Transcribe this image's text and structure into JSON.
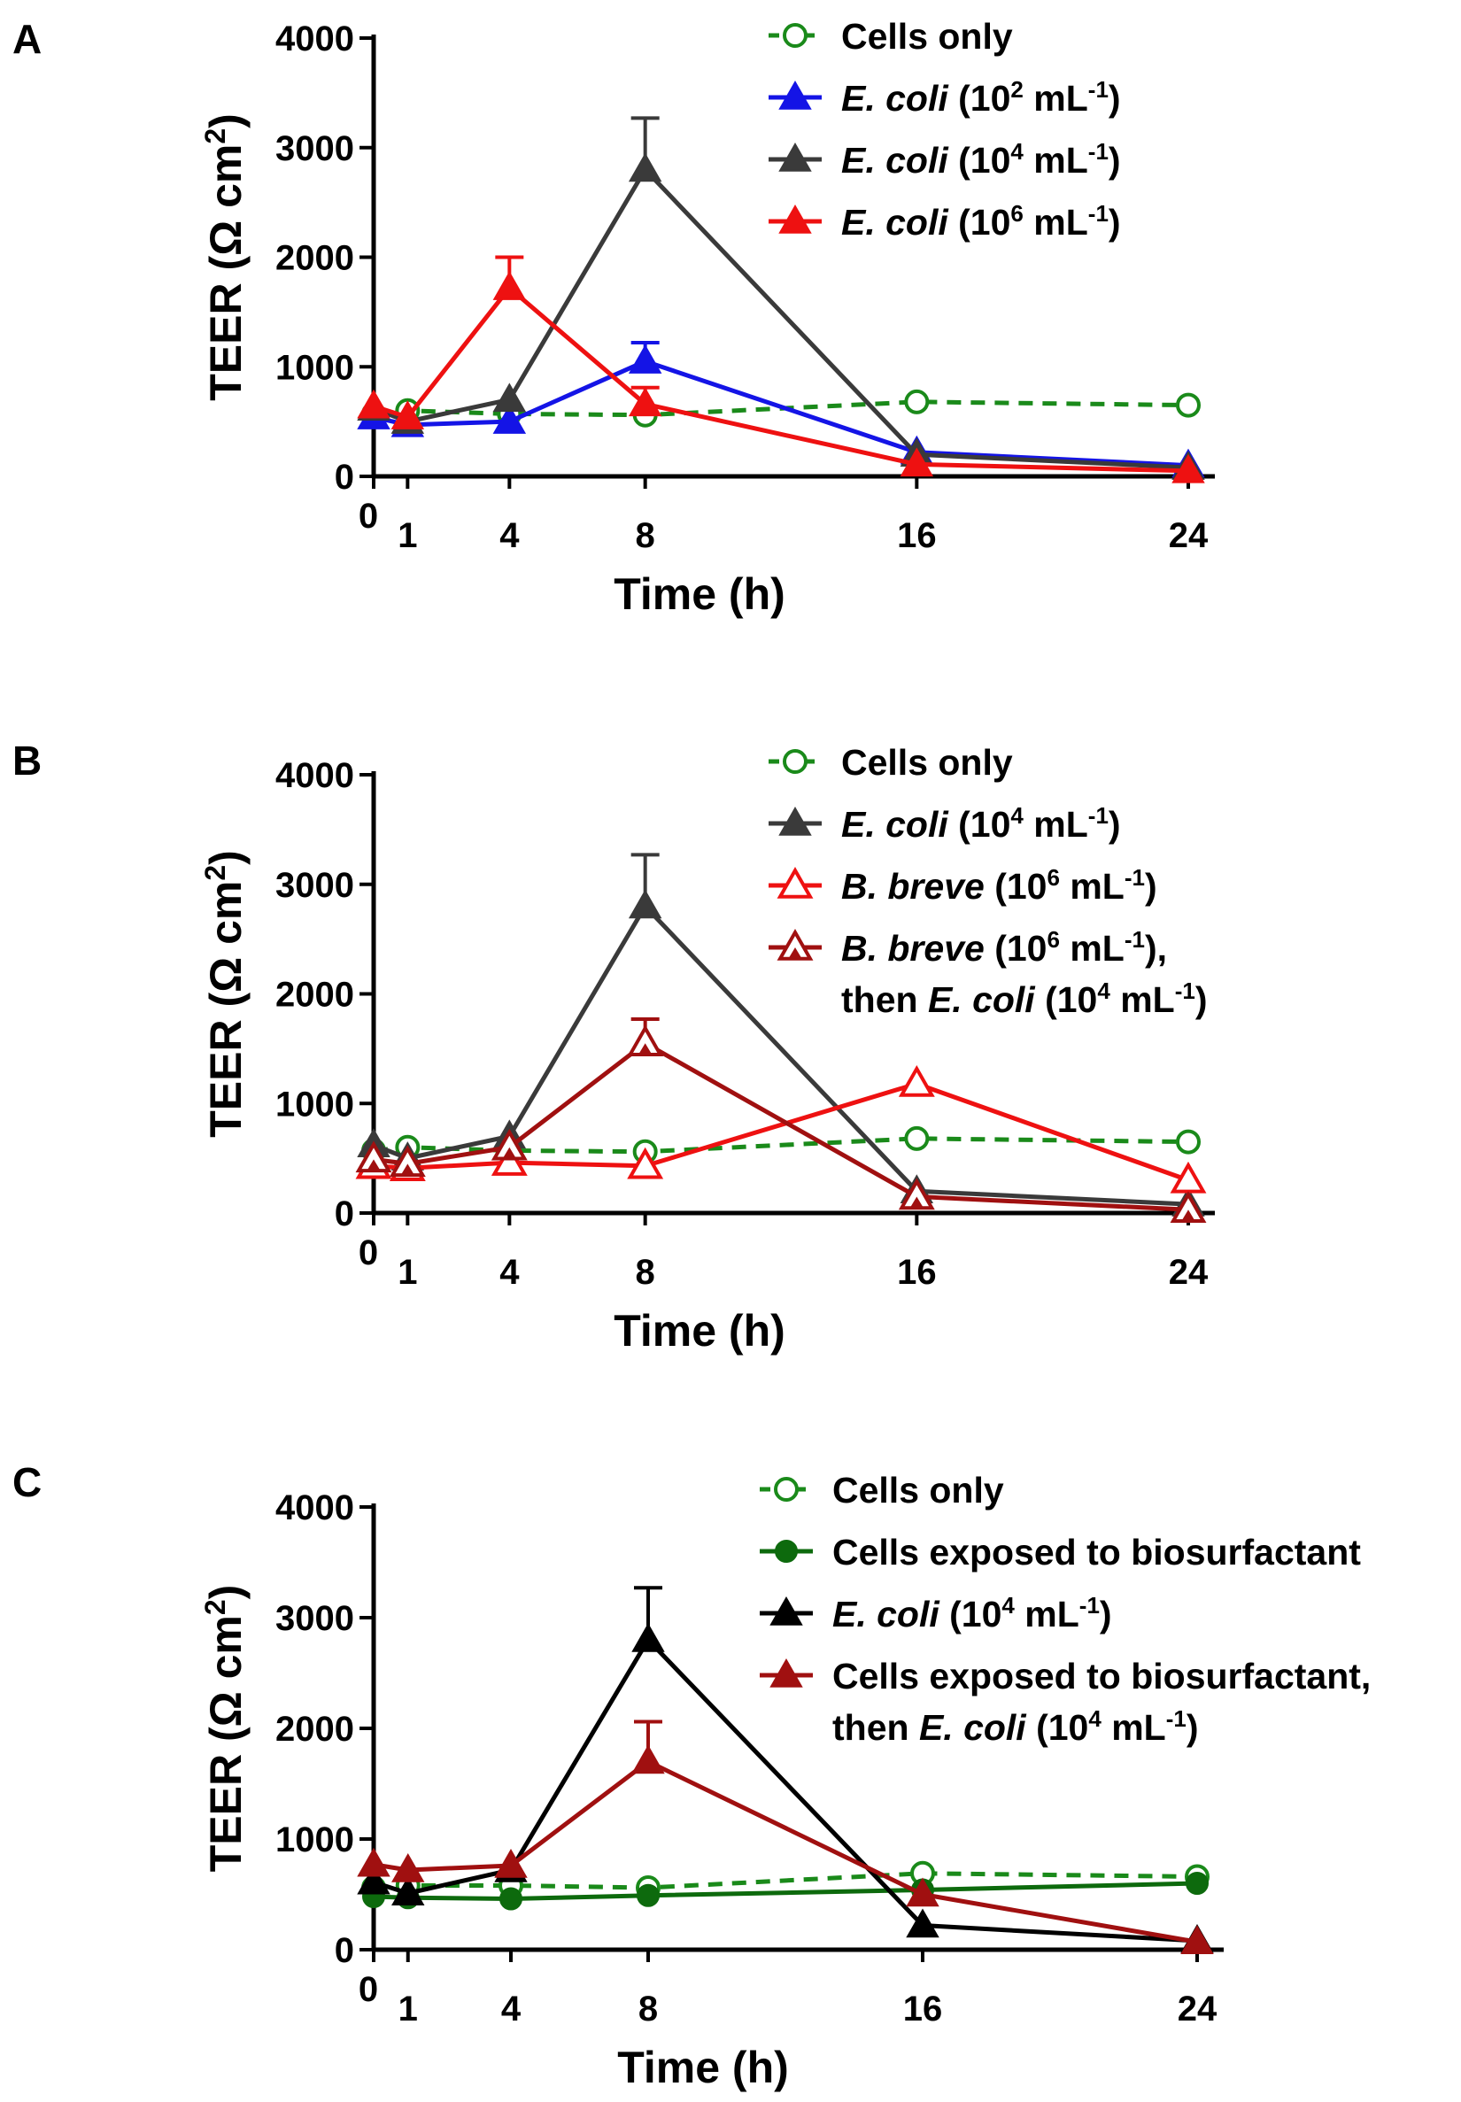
{
  "chart_data": [
    {
      "type": "line",
      "panel_label": "A",
      "xlabel": "Time (h)",
      "ylabel": "TEER (Ω cm²)",
      "ylabel_parts": {
        "pre": "TEER (Ω cm",
        "sup": "2",
        "post": ")"
      },
      "x": [
        0,
        1,
        4,
        8,
        16,
        24
      ],
      "x_tick_labels": [
        "0",
        "1",
        "4",
        "8",
        "16",
        "24"
      ],
      "ylim": [
        0,
        4000
      ],
      "y_ticks": [
        0,
        1000,
        2000,
        3000,
        4000
      ],
      "series": [
        {
          "name": "Cells only",
          "legend": [
            {
              "t": "Cells only"
            }
          ],
          "color": "#1a8a1a",
          "dash": true,
          "marker": "circle-open",
          "values": [
            570,
            600,
            570,
            560,
            680,
            650
          ],
          "errors": [
            0,
            0,
            0,
            0,
            0,
            0
          ]
        },
        {
          "name": "E. coli (10^2 mL^-1)",
          "legend": [
            {
              "t": "E. coli",
              "i": true
            },
            {
              "t": " (10"
            },
            {
              "t": "2",
              "s": true
            },
            {
              "t": " mL"
            },
            {
              "t": "-1",
              "s": true
            },
            {
              "t": ")"
            }
          ],
          "color": "#1414e6",
          "marker": "triangle-filled",
          "values": [
            540,
            470,
            500,
            1050,
            220,
            100
          ],
          "errors": [
            0,
            0,
            0,
            170,
            0,
            0
          ]
        },
        {
          "name": "E. coli (10^4 mL^-1)",
          "legend": [
            {
              "t": "E. coli",
              "i": true
            },
            {
              "t": " (10"
            },
            {
              "t": "4",
              "s": true
            },
            {
              "t": " mL"
            },
            {
              "t": "-1",
              "s": true
            },
            {
              "t": ")"
            }
          ],
          "color": "#3a3a3a",
          "marker": "triangle-filled",
          "values": [
            620,
            500,
            700,
            2800,
            200,
            80
          ],
          "errors": [
            0,
            0,
            0,
            470,
            0,
            0
          ]
        },
        {
          "name": "E. coli (10^6 mL^-1)",
          "legend": [
            {
              "t": "E. coli",
              "i": true
            },
            {
              "t": " (10"
            },
            {
              "t": "6",
              "s": true
            },
            {
              "t": " mL"
            },
            {
              "t": "-1",
              "s": true
            },
            {
              "t": ")"
            }
          ],
          "color": "#ee1111",
          "marker": "triangle-filled",
          "values": [
            640,
            540,
            1720,
            660,
            110,
            50
          ],
          "errors": [
            0,
            0,
            280,
            150,
            0,
            0
          ]
        }
      ]
    },
    {
      "type": "line",
      "panel_label": "B",
      "xlabel": "Time (h)",
      "ylabel": "TEER (Ω cm²)",
      "ylabel_parts": {
        "pre": "TEER (Ω cm",
        "sup": "2",
        "post": ")"
      },
      "x": [
        0,
        1,
        4,
        8,
        16,
        24
      ],
      "x_tick_labels": [
        "0",
        "1",
        "4",
        "8",
        "16",
        "24"
      ],
      "ylim": [
        0,
        4000
      ],
      "y_ticks": [
        0,
        1000,
        2000,
        3000,
        4000
      ],
      "series": [
        {
          "name": "Cells only",
          "legend": [
            {
              "t": "Cells only"
            }
          ],
          "color": "#1a8a1a",
          "dash": true,
          "marker": "circle-open",
          "values": [
            570,
            600,
            570,
            560,
            680,
            650
          ],
          "errors": [
            0,
            0,
            0,
            0,
            0,
            0
          ]
        },
        {
          "name": "E. coli (10^4 mL^-1)",
          "legend": [
            {
              "t": "E. coli",
              "i": true
            },
            {
              "t": " (10"
            },
            {
              "t": "4",
              "s": true
            },
            {
              "t": " mL"
            },
            {
              "t": "-1",
              "s": true
            },
            {
              "t": ")"
            }
          ],
          "color": "#3a3a3a",
          "marker": "triangle-filled",
          "values": [
            620,
            500,
            700,
            2800,
            200,
            80
          ],
          "errors": [
            0,
            0,
            0,
            470,
            0,
            0
          ]
        },
        {
          "name": "B. breve (10^6 mL^-1)",
          "legend": [
            {
              "t": "B. breve",
              "i": true
            },
            {
              "t": " (10"
            },
            {
              "t": "6",
              "s": true
            },
            {
              "t": " mL"
            },
            {
              "t": "-1",
              "s": true
            },
            {
              "t": ")"
            }
          ],
          "color": "#ee1111",
          "marker": "triangle-open",
          "values": [
            430,
            410,
            460,
            430,
            1180,
            300
          ],
          "errors": [
            0,
            0,
            0,
            0,
            0,
            0
          ]
        },
        {
          "name": "B. breve (10^6 mL^-1), then E. coli (10^4 mL^-1)",
          "legend": [
            {
              "t": "B. breve",
              "i": true
            },
            {
              "t": " (10"
            },
            {
              "t": "6",
              "s": true
            },
            {
              "t": " mL"
            },
            {
              "t": "-1",
              "s": true
            },
            {
              "t": "),"
            }
          ],
          "legend2": [
            {
              "t": "then "
            },
            {
              "t": "E. coli",
              "i": true
            },
            {
              "t": " (10"
            },
            {
              "t": "4",
              "s": true
            },
            {
              "t": " mL"
            },
            {
              "t": "-1",
              "s": true
            },
            {
              "t": ")"
            }
          ],
          "color": "#a01010",
          "marker": "triangle-open-filled",
          "values": [
            490,
            450,
            600,
            1550,
            150,
            30
          ],
          "errors": [
            0,
            0,
            0,
            220,
            0,
            0
          ]
        }
      ]
    },
    {
      "type": "line",
      "panel_label": "C",
      "xlabel": "Time (h)",
      "ylabel": "TEER (Ω cm²)",
      "ylabel_parts": {
        "pre": "TEER (Ω cm",
        "sup": "2",
        "post": ")"
      },
      "x": [
        0,
        1,
        4,
        8,
        16,
        24
      ],
      "x_tick_labels": [
        "0",
        "1",
        "4",
        "8",
        "16",
        "24"
      ],
      "ylim": [
        0,
        4000
      ],
      "y_ticks": [
        0,
        1000,
        2000,
        3000,
        4000
      ],
      "series": [
        {
          "name": "Cells only",
          "legend": [
            {
              "t": "Cells only"
            }
          ],
          "color": "#1a8a1a",
          "dash": true,
          "marker": "circle-open",
          "values": [
            560,
            580,
            580,
            560,
            690,
            660
          ],
          "errors": [
            0,
            0,
            0,
            0,
            0,
            0
          ]
        },
        {
          "name": "Cells exposed to biosurfactant",
          "legend": [
            {
              "t": "Cells exposed to biosurfactant"
            }
          ],
          "color": "#0d6a0d",
          "marker": "circle-filled",
          "values": [
            480,
            470,
            460,
            490,
            540,
            600
          ],
          "errors": [
            0,
            0,
            0,
            0,
            0,
            0
          ]
        },
        {
          "name": "E. coli (10^4 mL^-1)",
          "legend": [
            {
              "t": "E. coli",
              "i": true
            },
            {
              "t": " (10"
            },
            {
              "t": "4",
              "s": true
            },
            {
              "t": " mL"
            },
            {
              "t": "-1",
              "s": true
            },
            {
              "t": ")"
            }
          ],
          "color": "#000000",
          "marker": "triangle-filled",
          "values": [
            610,
            510,
            720,
            2800,
            220,
            80
          ],
          "errors": [
            0,
            0,
            0,
            470,
            0,
            0
          ]
        },
        {
          "name": "Cells exposed to biosurfactant, then E. coli (10^4 mL^-1)",
          "legend": [
            {
              "t": "Cells exposed to biosurfactant,"
            }
          ],
          "legend2": [
            {
              "t": "then "
            },
            {
              "t": "E. coli",
              "i": true
            },
            {
              "t": " (10"
            },
            {
              "t": "4",
              "s": true
            },
            {
              "t": " mL"
            },
            {
              "t": "-1",
              "s": true
            },
            {
              "t": ")"
            }
          ],
          "color": "#a01010",
          "marker": "triangle-filled",
          "values": [
            770,
            720,
            760,
            1700,
            500,
            70
          ],
          "errors": [
            0,
            0,
            0,
            360,
            0,
            0
          ]
        }
      ]
    }
  ]
}
